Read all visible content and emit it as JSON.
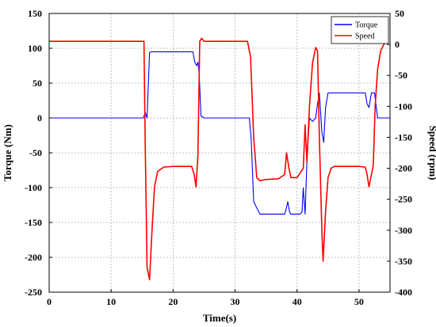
{
  "chart_data": {
    "type": "line",
    "xlabel": "Time(s)",
    "ylabel_left": "Torque (Nm)",
    "ylabel_right": "Speed (rpm)",
    "xlim": [
      0,
      55
    ],
    "ylim_left": [
      -250,
      150
    ],
    "ylim_right": [
      -400,
      50
    ],
    "x_ticks": [
      0,
      10,
      20,
      30,
      40,
      50
    ],
    "y_ticks_left": [
      -250,
      -200,
      -150,
      -100,
      -50,
      0,
      50,
      100,
      150
    ],
    "y_ticks_right": [
      -400,
      -350,
      -300,
      -250,
      -200,
      -150,
      -100,
      -50,
      0,
      50
    ],
    "grid": true,
    "legend_position": "top-right",
    "series": [
      {
        "name": "Torque",
        "color": "#0000ff",
        "axis": "left",
        "x": [
          0,
          15.2,
          15.5,
          15.8,
          16.2,
          16.5,
          17,
          20,
          23.2,
          23.5,
          23.8,
          24.0,
          24.2,
          24.5,
          25,
          28,
          31,
          32.3,
          32.6,
          33,
          34,
          38,
          38.2,
          38.5,
          38.8,
          39,
          40.5,
          40.8,
          41.0,
          41.3,
          41.6,
          42,
          42.5,
          43,
          43.3,
          43.6,
          44.0,
          44.3,
          44.6,
          45,
          48,
          51.0,
          51.3,
          51.6,
          52,
          52.5,
          53,
          55
        ],
        "y": [
          0,
          0,
          8,
          0,
          94,
          95,
          95,
          95,
          95,
          80,
          75,
          80,
          65,
          3,
          0,
          0,
          0,
          0,
          -30,
          -120,
          -138,
          -138,
          -132,
          -120,
          -135,
          -138,
          -138,
          -135,
          -100,
          -138,
          -60,
          0,
          -5,
          0,
          20,
          36,
          -20,
          -35,
          15,
          36,
          36,
          36,
          20,
          15,
          36,
          36,
          0,
          0
        ]
      },
      {
        "name": "Speed",
        "color": "#ff0000",
        "axis": "right",
        "x": [
          0,
          15.0,
          15.3,
          15.5,
          15.8,
          16.2,
          16.6,
          17.0,
          17.5,
          18.5,
          20,
          23.0,
          23.4,
          23.7,
          24.0,
          24.3,
          24.6,
          25,
          26,
          28,
          32,
          32.5,
          33,
          33.5,
          34,
          35,
          37,
          38.0,
          38.3,
          38.7,
          39.0,
          39.3,
          40,
          41.0,
          41.3,
          41.6,
          42.0,
          42.5,
          43.0,
          43.3,
          43.6,
          44.0,
          44.2,
          44.6,
          45.0,
          45.5,
          46,
          47,
          48,
          50,
          51.0,
          51.3,
          51.6,
          52.0,
          52.3,
          52.6,
          53,
          53.5,
          54,
          54.5
        ],
        "y": [
          5,
          5,
          5,
          -160,
          -360,
          -380,
          -300,
          -230,
          -205,
          -198,
          -197,
          -197,
          -210,
          -230,
          -180,
          5,
          10,
          5,
          5,
          5,
          5,
          -20,
          -150,
          -215,
          -220,
          -218,
          -217,
          -210,
          -175,
          -200,
          -215,
          -215,
          -215,
          -200,
          -130,
          -190,
          -100,
          -30,
          -5,
          -10,
          -150,
          -300,
          -350,
          -270,
          -215,
          -200,
          -197,
          -197,
          -197,
          -197,
          -198,
          -210,
          -230,
          -210,
          -195,
          -100,
          -40,
          -10,
          0,
          5
        ]
      }
    ]
  }
}
